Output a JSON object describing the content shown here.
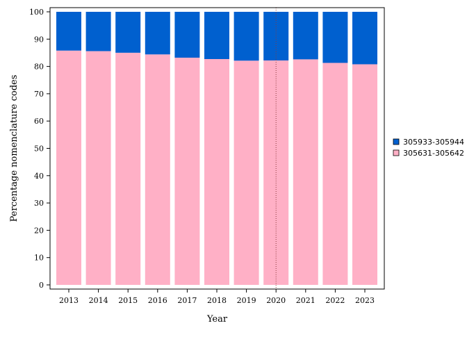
{
  "chart_data": {
    "type": "bar",
    "stacked": true,
    "title": "",
    "xlabel": "Year",
    "ylabel": "Percentage nomenclature codes",
    "ylim": [
      0,
      100
    ],
    "yticks": [
      0,
      10,
      20,
      30,
      40,
      50,
      60,
      70,
      80,
      90,
      100
    ],
    "categories": [
      "2013",
      "2014",
      "2015",
      "2016",
      "2017",
      "2018",
      "2019",
      "2020",
      "2021",
      "2022",
      "2023"
    ],
    "series": [
      {
        "name": "305631-305642",
        "color": "#ffb0c6",
        "values": [
          85.8,
          85.6,
          85.0,
          84.4,
          83.2,
          82.7,
          82.1,
          82.2,
          82.6,
          81.3,
          80.8
        ]
      },
      {
        "name": "305933-305944",
        "color": "#0060cf",
        "values": [
          14.2,
          14.4,
          15.0,
          15.6,
          16.8,
          17.3,
          17.9,
          17.8,
          17.4,
          18.7,
          19.2
        ]
      }
    ],
    "legend": {
      "position": "right",
      "entries": [
        "305933-305944",
        "305631-305642"
      ]
    },
    "reference_line": {
      "x": "2020",
      "style": "dotted",
      "color": "#8b3a3a"
    },
    "grid": false
  }
}
